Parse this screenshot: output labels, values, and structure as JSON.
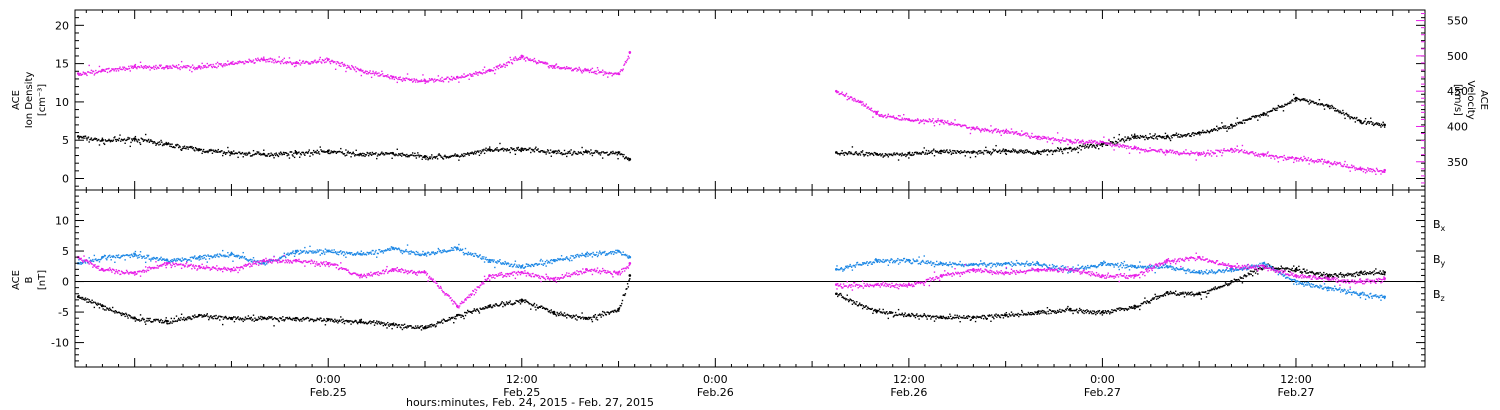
{
  "colors": {
    "black": "#000000",
    "magenta": "#e81ee8",
    "blue": "#1e88e5",
    "frame": "#000000"
  },
  "xaxis": {
    "label": "hours:minutes, Feb. 24, 2015 - Feb. 27, 2015",
    "range_hours": [
      -15.7,
      68.0
    ],
    "ticks": [
      {
        "hours": 0,
        "time": "0:00",
        "date": "Feb.25"
      },
      {
        "hours": 12,
        "time": "12:00",
        "date": "Feb.25"
      },
      {
        "hours": 24,
        "time": "0:00",
        "date": "Feb.26"
      },
      {
        "hours": 36,
        "time": "12:00",
        "date": "Feb.26"
      },
      {
        "hours": 48,
        "time": "0:00",
        "date": "Feb.27"
      },
      {
        "hours": 60,
        "time": "12:00",
        "date": "Feb.27"
      }
    ]
  },
  "chart_data": [
    {
      "type": "scatter",
      "panel": "top",
      "ylabel_left": [
        "ACE",
        "Ion Density",
        "[cm⁻³]"
      ],
      "ylabel_right": [
        "ACE",
        "Velocity",
        "[km/s]"
      ],
      "ylim_left": [
        -1.5,
        22
      ],
      "ylim_right": [
        310,
        565
      ],
      "yticks_left": [
        0,
        5,
        10,
        15,
        20
      ],
      "yticks_right": [
        350,
        400,
        450,
        500,
        550
      ],
      "data_gap_hours": [
        18.7,
        31.5
      ],
      "series": [
        {
          "name": "",
          "axis": "left",
          "color": "black",
          "x_hours": [
            -15.5,
            -14,
            -12,
            -10,
            -8,
            -6,
            -4,
            -2,
            0,
            2,
            4,
            6,
            8,
            10,
            12,
            14,
            16,
            18,
            18.7,
            31.5,
            34,
            36,
            38,
            40,
            42,
            44,
            46,
            48,
            50,
            52,
            54,
            56,
            58,
            60,
            62,
            64,
            65.5
          ],
          "values": [
            5.5,
            5.0,
            5.2,
            4.5,
            3.8,
            3.4,
            3.2,
            3.4,
            3.6,
            3.2,
            3.3,
            2.9,
            3.0,
            3.8,
            3.9,
            3.5,
            3.5,
            3.4,
            2.5,
            3.4,
            3.2,
            3.3,
            3.6,
            3.5,
            3.7,
            3.5,
            4.0,
            4.5,
            5.5,
            5.5,
            6.0,
            7.0,
            8.5,
            10.5,
            9.5,
            7.5,
            7.0
          ]
        },
        {
          "name": "",
          "axis": "right",
          "color": "magenta",
          "x_hours": [
            -15.5,
            -14,
            -12,
            -10,
            -8,
            -6,
            -4,
            -2,
            0,
            2,
            4,
            6,
            8,
            10,
            12,
            14,
            16,
            18,
            18.7,
            31.5,
            33,
            34,
            36,
            38,
            40,
            42,
            44,
            46,
            48,
            50,
            52,
            54,
            56,
            58,
            60,
            62,
            64,
            65.5
          ],
          "values": [
            475,
            480,
            485,
            485,
            485,
            490,
            495,
            490,
            495,
            480,
            470,
            465,
            470,
            480,
            500,
            485,
            480,
            475,
            505,
            450,
            435,
            418,
            410,
            408,
            398,
            393,
            385,
            380,
            378,
            370,
            365,
            362,
            368,
            360,
            355,
            350,
            340,
            338
          ]
        }
      ]
    },
    {
      "type": "scatter",
      "panel": "bottom",
      "ylabel_left": [
        "ACE",
        "B",
        "[nT]"
      ],
      "ylim_left": [
        -14,
        15
      ],
      "yticks_left": [
        -10,
        -5,
        0,
        5,
        10
      ],
      "zero_line": true,
      "data_gap_hours": [
        18.7,
        31.5
      ],
      "series": [
        {
          "name": "Bx",
          "color": "black",
          "x_hours": [
            -15.5,
            -14,
            -12,
            -10,
            -8,
            -6,
            -4,
            -2,
            0,
            2,
            4,
            6,
            8,
            10,
            12,
            14,
            16,
            18,
            18.7,
            31.5,
            34,
            36,
            38,
            40,
            42,
            44,
            46,
            48,
            50,
            52,
            54,
            56,
            58,
            60,
            62,
            64,
            65.5
          ],
          "values": [
            -2.5,
            -4.0,
            -6.0,
            -6.5,
            -5.5,
            -6.0,
            -6.0,
            -6.0,
            -6.2,
            -6.5,
            -7.0,
            -7.5,
            -5.5,
            -4.0,
            -3.0,
            -5.0,
            -6.0,
            -4.5,
            1.0,
            -2.0,
            -4.8,
            -5.5,
            -5.8,
            -5.8,
            -5.5,
            -5.0,
            -4.5,
            -5.0,
            -4.0,
            -1.8,
            -2.0,
            0.0,
            2.5,
            2.0,
            1.0,
            1.5,
            1.5
          ]
        },
        {
          "name": "By",
          "color": "blue",
          "x_hours": [
            -15.5,
            -14,
            -12,
            -10,
            -8,
            -6,
            -4,
            -2,
            0,
            2,
            4,
            6,
            8,
            10,
            12,
            14,
            16,
            18,
            18.7,
            31.5,
            34,
            36,
            38,
            40,
            42,
            44,
            46,
            48,
            50,
            52,
            54,
            56,
            58,
            60,
            62,
            64,
            65.5
          ],
          "values": [
            3.0,
            4.0,
            4.5,
            3.5,
            4.0,
            4.5,
            3.0,
            5.0,
            5.0,
            4.5,
            5.5,
            4.5,
            5.5,
            3.5,
            2.5,
            3.5,
            4.5,
            5.0,
            4.0,
            2.0,
            3.5,
            3.5,
            3.0,
            2.8,
            3.0,
            3.0,
            2.0,
            3.0,
            2.5,
            2.5,
            1.5,
            2.0,
            3.0,
            0.0,
            -1.0,
            -2.0,
            -2.5
          ]
        },
        {
          "name": "Bz",
          "color": "magenta",
          "x_hours": [
            -15.5,
            -14,
            -12,
            -10,
            -8,
            -6,
            -4,
            -2,
            0,
            2,
            4,
            6,
            8,
            10,
            12,
            14,
            16,
            18,
            18.7,
            31.5,
            34,
            36,
            38,
            40,
            42,
            44,
            46,
            48,
            50,
            52,
            54,
            56,
            58,
            60,
            62,
            64,
            65.5
          ],
          "values": [
            4.0,
            2.0,
            1.5,
            3.0,
            2.5,
            2.0,
            3.5,
            3.5,
            3.0,
            1.0,
            2.0,
            1.5,
            -4.0,
            1.0,
            1.5,
            0.5,
            2.0,
            1.5,
            3.0,
            -0.5,
            -0.5,
            -0.5,
            1.0,
            2.0,
            1.5,
            2.0,
            2.0,
            1.0,
            1.0,
            3.5,
            4.0,
            2.5,
            2.5,
            1.0,
            0.5,
            0.0,
            0.5
          ]
        }
      ],
      "legend": {
        "placement": "right",
        "entries": [
          {
            "label": "B",
            "sub": "x",
            "color": "black"
          },
          {
            "label": "B",
            "sub": "y",
            "color": "blue"
          },
          {
            "label": "B",
            "sub": "z",
            "color": "magenta"
          }
        ]
      }
    }
  ]
}
